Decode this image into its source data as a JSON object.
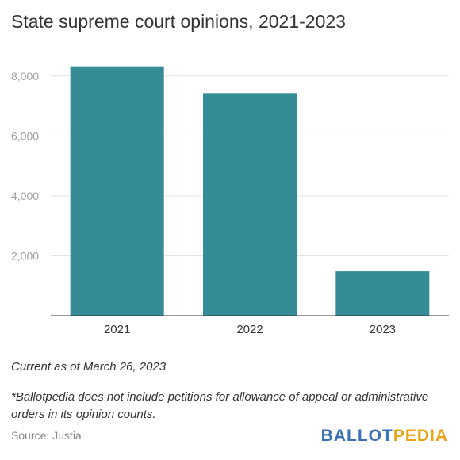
{
  "title": "State supreme court opinions, 2021-2023",
  "chart_data": {
    "type": "bar",
    "title": "State supreme court opinions, 2021-2023",
    "xlabel": "",
    "ylabel": "",
    "categories": [
      "2021",
      "2022",
      "2023"
    ],
    "values": [
      8320,
      7430,
      1480
    ],
    "ylim": [
      0,
      9000
    ],
    "yticks": [
      2000,
      4000,
      6000,
      8000
    ],
    "ytick_labels": [
      "2,000",
      "4,000",
      "6,000",
      "8,000"
    ],
    "grid": true,
    "bar_color": "#358b96"
  },
  "notes": {
    "current": "Current as of March 26, 2023",
    "disclaimer": "*Ballotpedia does not include petitions for allowance of appeal or administrative orders in its opinion counts."
  },
  "source": "Source: Justia",
  "logo": {
    "part1": "BALLOT",
    "part2": "PEDIA",
    "color1": "#3a6fb5",
    "color2": "#e8a317"
  }
}
